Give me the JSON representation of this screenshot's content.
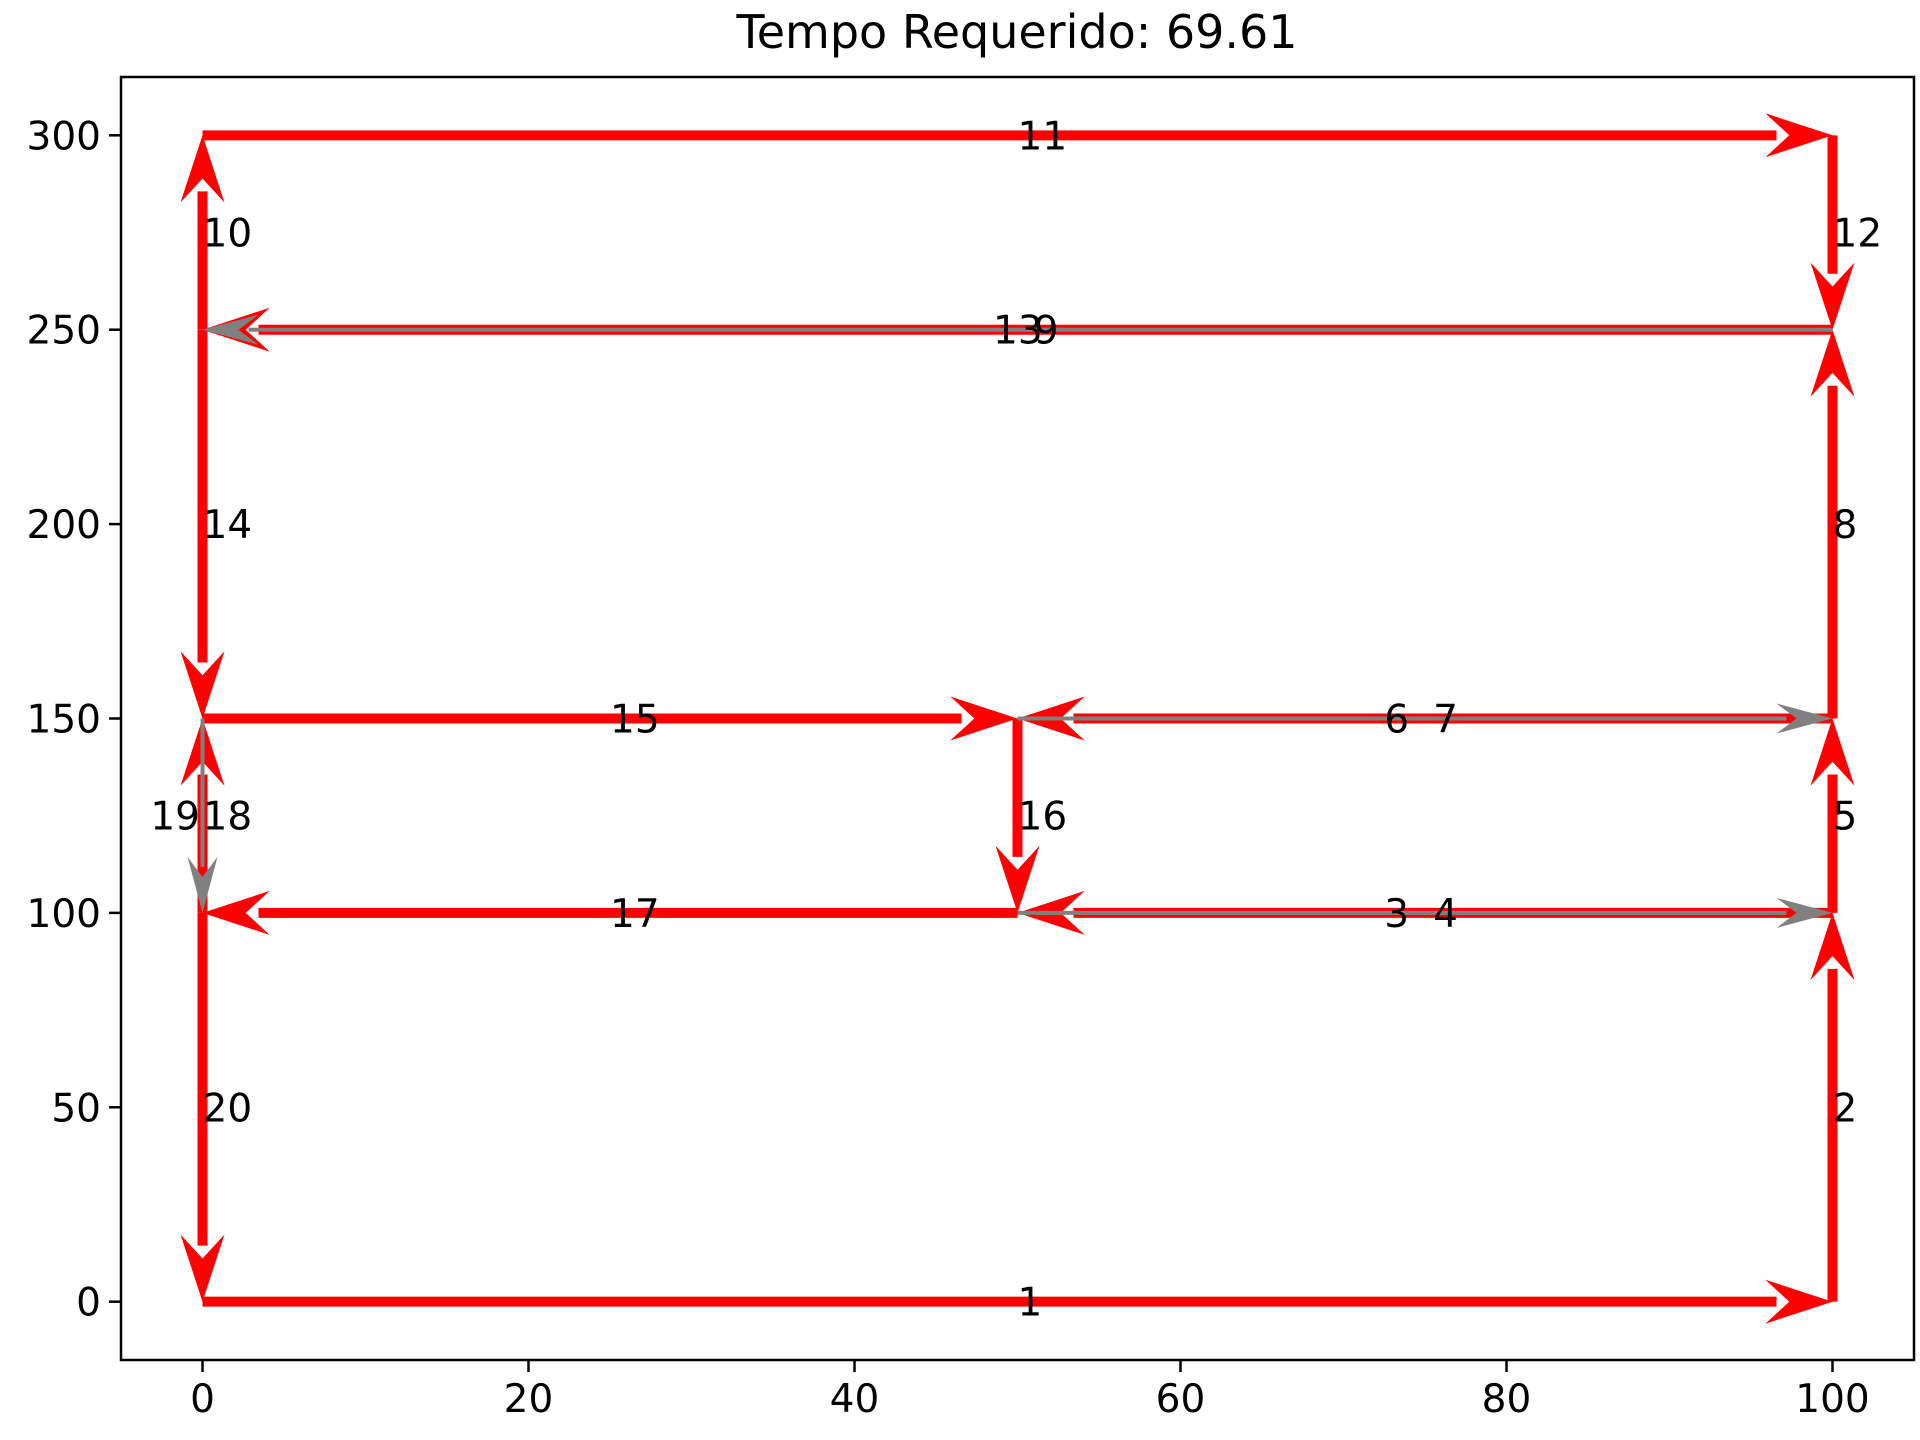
{
  "chart_data": {
    "type": "network",
    "title": "Tempo Requerido: 69.61",
    "xlabel": "",
    "ylabel": "",
    "xlim": [
      -5,
      105
    ],
    "ylim": [
      -15,
      315
    ],
    "xticks": [
      0,
      20,
      40,
      60,
      80,
      100
    ],
    "yticks": [
      0,
      50,
      100,
      150,
      200,
      250,
      300
    ],
    "grid": false,
    "colors": {
      "traversed": "#ff0000",
      "unused": "#808080"
    },
    "edges": [
      {
        "id": "1",
        "from": [
          0,
          0
        ],
        "to": [
          100,
          0
        ],
        "color": "red",
        "label_at": [
          50,
          0
        ]
      },
      {
        "id": "2",
        "from": [
          100,
          0
        ],
        "to": [
          100,
          100
        ],
        "color": "red",
        "label_at": [
          100,
          50
        ]
      },
      {
        "id": "3",
        "from": [
          100,
          100
        ],
        "to": [
          50,
          100
        ],
        "color": "red",
        "label_at": [
          72.5,
          100
        ]
      },
      {
        "id": "4",
        "from": [
          50,
          100
        ],
        "to": [
          100,
          100
        ],
        "color": "gray",
        "label_at": [
          75.5,
          100
        ]
      },
      {
        "id": "5",
        "from": [
          100,
          100
        ],
        "to": [
          100,
          150
        ],
        "color": "red",
        "label_at": [
          100,
          125
        ]
      },
      {
        "id": "6",
        "from": [
          100,
          150
        ],
        "to": [
          50,
          150
        ],
        "color": "red",
        "label_at": [
          72.5,
          150
        ]
      },
      {
        "id": "7",
        "from": [
          50,
          150
        ],
        "to": [
          100,
          150
        ],
        "color": "gray",
        "label_at": [
          75.5,
          150
        ]
      },
      {
        "id": "8",
        "from": [
          100,
          150
        ],
        "to": [
          100,
          250
        ],
        "color": "red",
        "label_at": [
          100,
          200
        ]
      },
      {
        "id": "9",
        "from": [
          100,
          250
        ],
        "to": [
          0,
          250
        ],
        "color": "red",
        "label_at": [
          51,
          250
        ]
      },
      {
        "id": "10",
        "from": [
          0,
          250
        ],
        "to": [
          0,
          300
        ],
        "color": "red",
        "label_at": [
          0,
          275
        ]
      },
      {
        "id": "11",
        "from": [
          0,
          300
        ],
        "to": [
          100,
          300
        ],
        "color": "red",
        "label_at": [
          50,
          300
        ]
      },
      {
        "id": "12",
        "from": [
          100,
          300
        ],
        "to": [
          100,
          250
        ],
        "color": "red",
        "label_at": [
          100,
          275
        ]
      },
      {
        "id": "13",
        "from": [
          100,
          250
        ],
        "to": [
          0,
          250
        ],
        "color": "gray",
        "label_at": [
          48.5,
          250
        ]
      },
      {
        "id": "14",
        "from": [
          0,
          250
        ],
        "to": [
          0,
          150
        ],
        "color": "red",
        "label_at": [
          0,
          200
        ]
      },
      {
        "id": "15",
        "from": [
          0,
          150
        ],
        "to": [
          50,
          150
        ],
        "color": "red",
        "label_at": [
          25,
          150
        ]
      },
      {
        "id": "16",
        "from": [
          50,
          150
        ],
        "to": [
          50,
          100
        ],
        "color": "red",
        "label_at": [
          50,
          125
        ]
      },
      {
        "id": "17",
        "from": [
          50,
          100
        ],
        "to": [
          0,
          100
        ],
        "color": "red",
        "label_at": [
          25,
          100
        ]
      },
      {
        "id": "18",
        "from": [
          0,
          100
        ],
        "to": [
          0,
          150
        ],
        "color": "red",
        "label_at": [
          0,
          125
        ]
      },
      {
        "id": "19",
        "from": [
          0,
          150
        ],
        "to": [
          0,
          100
        ],
        "color": "gray",
        "label_at": [
          -3.2,
          125
        ]
      },
      {
        "id": "20",
        "from": [
          0,
          100
        ],
        "to": [
          0,
          0
        ],
        "color": "red",
        "label_at": [
          0,
          50
        ]
      }
    ]
  }
}
